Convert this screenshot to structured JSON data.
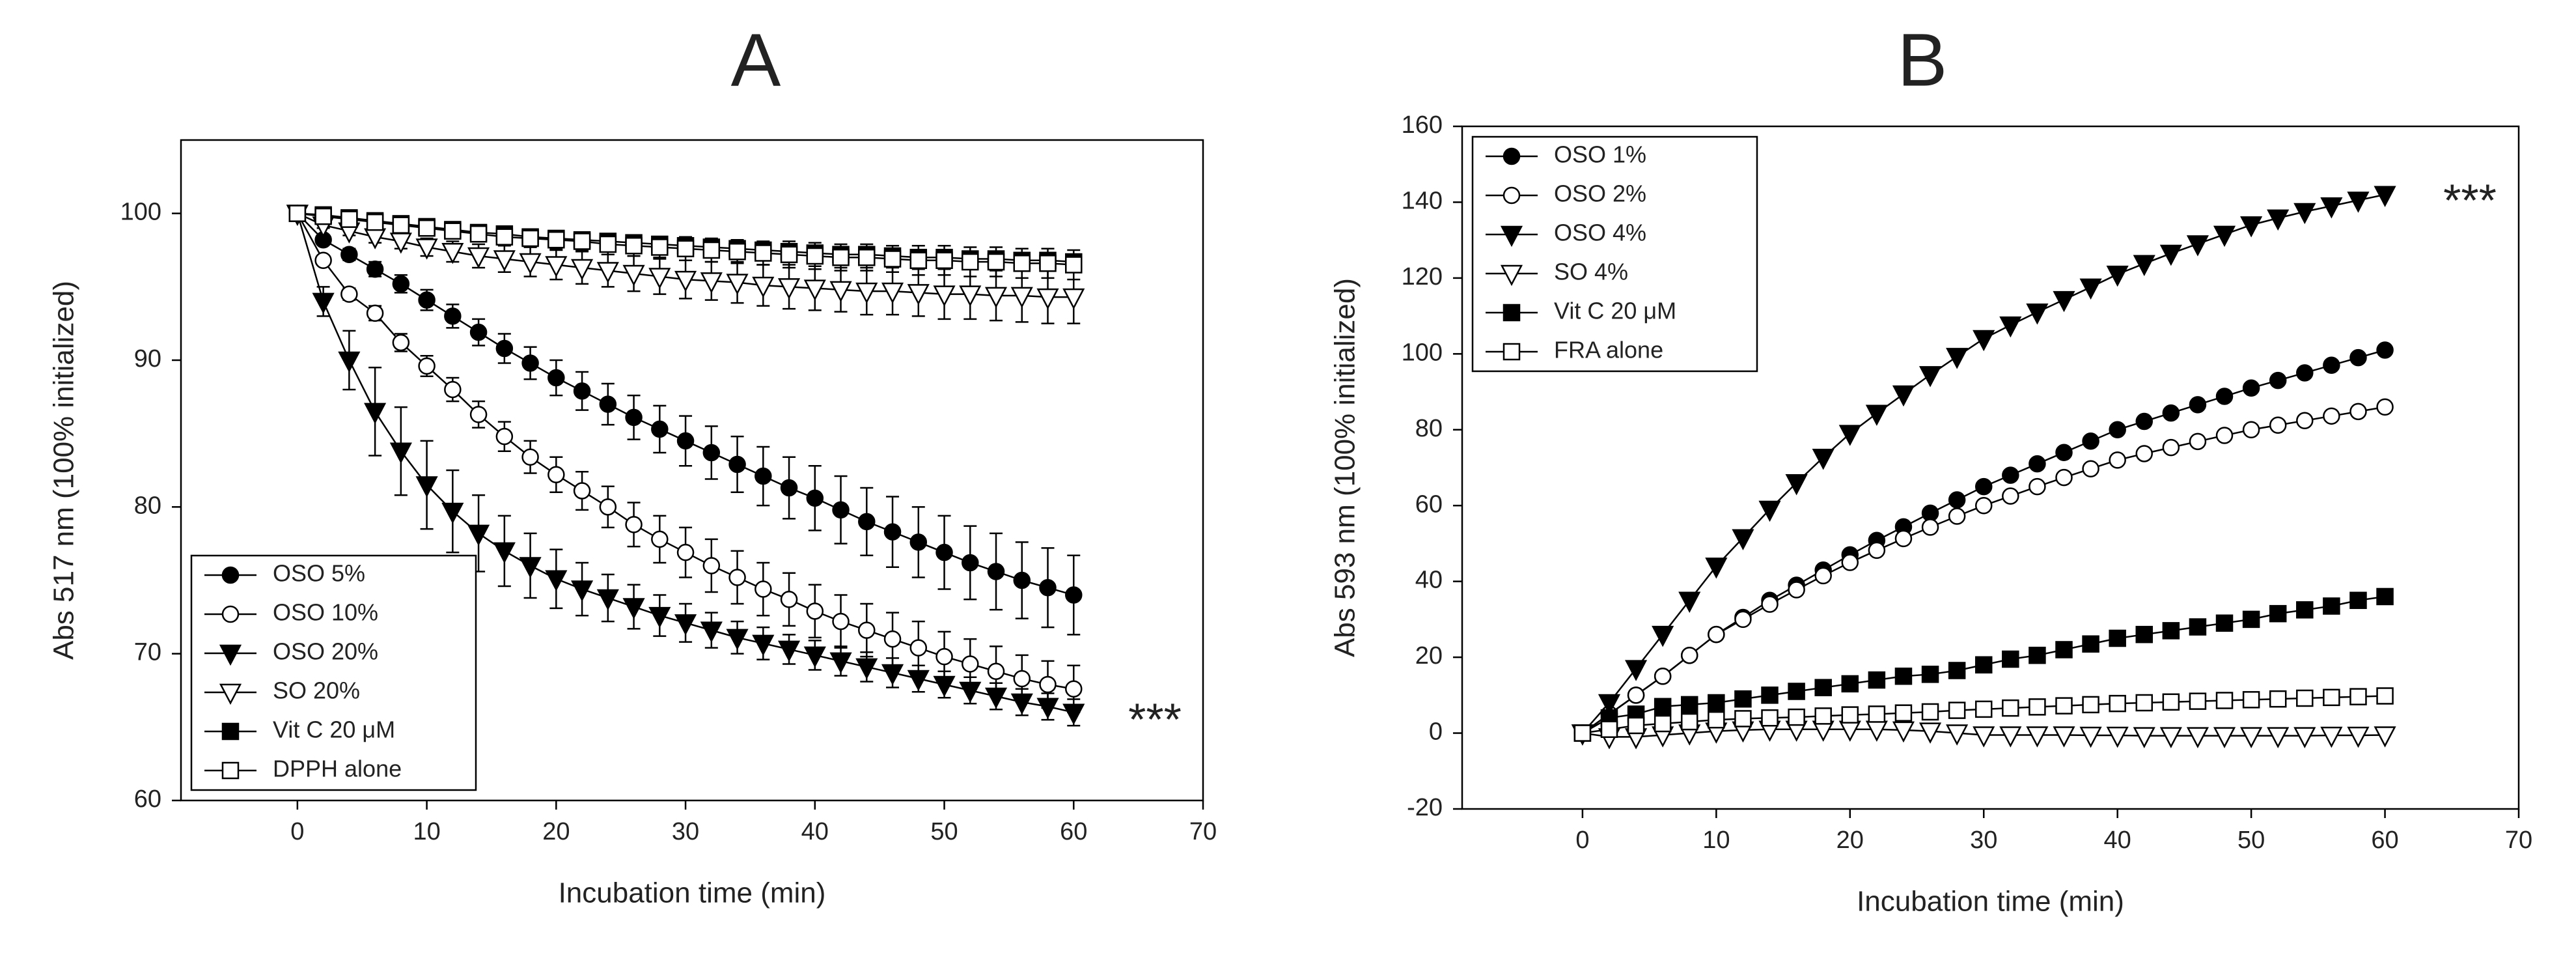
{
  "chart_data": [
    {
      "type": "line",
      "title": "A",
      "xlabel": "Incubation time (min)",
      "ylabel": "Abs 517 nm (100% initialized)",
      "annotation": "***",
      "xlim": [
        -9,
        70
      ],
      "xticks": [
        0,
        10,
        20,
        30,
        40,
        50,
        60,
        70
      ],
      "ylim": [
        60,
        105
      ],
      "yticks": [
        60,
        70,
        80,
        90,
        100
      ],
      "legend": "lower left",
      "x": [
        0,
        2,
        4,
        6,
        8,
        10,
        12,
        14,
        16,
        18,
        20,
        22,
        24,
        26,
        28,
        30,
        32,
        34,
        36,
        38,
        40,
        42,
        44,
        46,
        48,
        50,
        52,
        54,
        56,
        58,
        60
      ],
      "series": [
        {
          "name": "OSO 5%",
          "color": "#000000",
          "marker": "circle",
          "filled": true,
          "values": [
            100,
            98.2,
            97.2,
            96.2,
            95.2,
            94.1,
            93,
            91.9,
            90.8,
            89.8,
            88.8,
            87.9,
            87,
            86.1,
            85.3,
            84.5,
            83.7,
            82.9,
            82.1,
            81.3,
            80.6,
            79.8,
            79,
            78.3,
            77.6,
            76.9,
            76.2,
            75.6,
            75,
            74.5,
            74
          ],
          "errors": [
            0,
            0.3,
            0.4,
            0.5,
            0.6,
            0.7,
            0.8,
            0.9,
            1,
            1.1,
            1.2,
            1.3,
            1.4,
            1.5,
            1.6,
            1.7,
            1.8,
            1.9,
            2,
            2.1,
            2.2,
            2.3,
            2.3,
            2.4,
            2.4,
            2.5,
            2.5,
            2.6,
            2.6,
            2.7,
            2.7
          ]
        },
        {
          "name": "OSO 10%",
          "color": "#000000",
          "marker": "circle",
          "filled": false,
          "values": [
            100,
            96.8,
            94.5,
            93.2,
            91.2,
            89.6,
            88,
            86.3,
            84.8,
            83.4,
            82.2,
            81.1,
            80,
            78.8,
            77.8,
            76.9,
            76,
            75.2,
            74.4,
            73.7,
            72.9,
            72.2,
            71.6,
            71,
            70.4,
            69.8,
            69.3,
            68.8,
            68.3,
            67.9,
            67.6
          ],
          "errors": [
            0,
            0.3,
            0.4,
            0.5,
            0.6,
            0.7,
            0.8,
            0.9,
            1,
            1.1,
            1.2,
            1.3,
            1.4,
            1.5,
            1.6,
            1.7,
            1.8,
            1.8,
            1.8,
            1.8,
            1.8,
            1.8,
            1.8,
            1.8,
            1.8,
            1.7,
            1.7,
            1.7,
            1.6,
            1.6,
            1.6
          ]
        },
        {
          "name": "OSO 20%",
          "color": "#000000",
          "marker": "triangle",
          "filled": true,
          "values": [
            100,
            94,
            90,
            86.5,
            83.8,
            81.5,
            79.7,
            78.2,
            77,
            76,
            75.1,
            74.4,
            73.8,
            73.2,
            72.6,
            72.1,
            71.6,
            71.1,
            70.7,
            70.3,
            69.9,
            69.5,
            69.1,
            68.7,
            68.3,
            67.9,
            67.5,
            67.1,
            66.7,
            66.4,
            66
          ],
          "errors": [
            0,
            1,
            2,
            3,
            3,
            3,
            2.8,
            2.6,
            2.4,
            2.2,
            2,
            1.8,
            1.6,
            1.5,
            1.4,
            1.3,
            1.2,
            1.1,
            1.1,
            1,
            1,
            1,
            1,
            1,
            0.9,
            0.9,
            0.9,
            0.9,
            0.9,
            0.9,
            0.9
          ]
        },
        {
          "name": "SO 20%",
          "color": "#000000",
          "marker": "triangle",
          "filled": false,
          "values": [
            100,
            99.2,
            98.8,
            98.4,
            98.1,
            97.7,
            97.4,
            97.1,
            96.9,
            96.7,
            96.5,
            96.3,
            96.1,
            95.9,
            95.7,
            95.5,
            95.4,
            95.3,
            95.1,
            95,
            94.9,
            94.8,
            94.7,
            94.7,
            94.6,
            94.5,
            94.5,
            94.4,
            94.4,
            94.3,
            94.3
          ],
          "errors": [
            0,
            0.2,
            0.3,
            0.4,
            0.5,
            0.6,
            0.7,
            0.8,
            0.9,
            1,
            1,
            1.1,
            1.1,
            1.2,
            1.2,
            1.3,
            1.3,
            1.4,
            1.4,
            1.5,
            1.5,
            1.5,
            1.6,
            1.6,
            1.6,
            1.7,
            1.7,
            1.7,
            1.8,
            1.8,
            1.8
          ]
        },
        {
          "name": "Vit C 20 μM",
          "color": "#000000",
          "marker": "square",
          "filled": true,
          "values": [
            100,
            99.9,
            99.7,
            99.5,
            99.3,
            99.1,
            98.9,
            98.7,
            98.6,
            98.4,
            98.3,
            98.2,
            98.1,
            98,
            97.9,
            97.8,
            97.7,
            97.6,
            97.5,
            97.4,
            97.3,
            97.2,
            97.2,
            97.1,
            97,
            97,
            96.9,
            96.9,
            96.8,
            96.8,
            96.7
          ]
        },
        {
          "name": "DPPH alone",
          "color": "#000000",
          "marker": "square",
          "filled": false,
          "values": [
            100,
            99.8,
            99.6,
            99.4,
            99.2,
            99,
            98.8,
            98.6,
            98.4,
            98.3,
            98.2,
            98.1,
            97.9,
            97.8,
            97.7,
            97.6,
            97.5,
            97.4,
            97.3,
            97.2,
            97.1,
            97,
            97,
            96.9,
            96.8,
            96.8,
            96.7,
            96.7,
            96.6,
            96.6,
            96.5
          ],
          "errors": [
            0,
            0.2,
            0.2,
            0.3,
            0.3,
            0.4,
            0.4,
            0.5,
            0.5,
            0.6,
            0.6,
            0.6,
            0.7,
            0.7,
            0.7,
            0.8,
            0.8,
            0.8,
            0.8,
            0.9,
            0.9,
            0.9,
            0.9,
            0.9,
            1,
            1,
            1,
            1,
            1,
            1,
            1
          ]
        }
      ]
    },
    {
      "type": "line",
      "title": "B",
      "xlabel": "Incubation time (min)",
      "ylabel": "Abs 593 nm (100% initialized)",
      "annotation": "***",
      "xlim": [
        -9,
        70
      ],
      "xticks": [
        0,
        10,
        20,
        30,
        40,
        50,
        60,
        70
      ],
      "ylim": [
        -20,
        160
      ],
      "yticks": [
        -20,
        0,
        20,
        40,
        60,
        80,
        100,
        120,
        140,
        160
      ],
      "legend": "upper left",
      "x": [
        0,
        2,
        4,
        6,
        8,
        10,
        12,
        14,
        16,
        18,
        20,
        22,
        24,
        26,
        28,
        30,
        32,
        34,
        36,
        38,
        40,
        42,
        44,
        46,
        48,
        50,
        52,
        54,
        56,
        58,
        60
      ],
      "series": [
        {
          "name": "OSO 1%",
          "color": "#000000",
          "marker": "circle",
          "filled": true,
          "values": [
            0,
            5,
            10,
            15,
            20.5,
            26,
            30.5,
            35,
            39,
            43,
            47,
            50.8,
            54.4,
            58,
            61.5,
            65,
            68,
            71,
            74,
            77,
            80,
            82.2,
            84.4,
            86.6,
            88.8,
            91,
            93,
            95,
            97,
            99,
            101
          ]
        },
        {
          "name": "OSO 2%",
          "color": "#000000",
          "marker": "circle",
          "filled": false,
          "values": [
            0,
            5,
            10,
            15,
            20.5,
            26,
            30,
            34,
            37.8,
            41.5,
            45,
            48.2,
            51.3,
            54.3,
            57.2,
            60,
            62.5,
            65,
            67.4,
            69.7,
            72,
            73.7,
            75.3,
            76.9,
            78.5,
            80,
            81.2,
            82.4,
            83.6,
            84.8,
            86
          ]
        },
        {
          "name": "OSO 4%",
          "color": "#000000",
          "marker": "triangle",
          "filled": true,
          "values": [
            0,
            8,
            17,
            26,
            35,
            44,
            51.5,
            59,
            66,
            72.7,
            79,
            84.3,
            89.4,
            94.5,
            99.3,
            104,
            107.6,
            111,
            114.3,
            117.6,
            121,
            123.8,
            126.5,
            129,
            131.5,
            134,
            135.8,
            137.5,
            139,
            140.5,
            142
          ]
        },
        {
          "name": "SO 4%",
          "color": "#000000",
          "marker": "triangle",
          "filled": false,
          "values": [
            0,
            -1,
            -1,
            -0.5,
            0,
            0.5,
            0.8,
            1,
            1,
            1,
            1,
            1,
            0.8,
            0.5,
            0,
            -0.5,
            -0.5,
            -0.5,
            -0.5,
            -0.6,
            -0.6,
            -0.7,
            -0.7,
            -0.7,
            -0.7,
            -0.7,
            -0.7,
            -0.7,
            -0.6,
            -0.6,
            -0.5
          ]
        },
        {
          "name": "Vit C 20 μM",
          "color": "#000000",
          "marker": "square",
          "filled": true,
          "values": [
            0,
            4,
            5,
            7,
            7.5,
            8,
            9,
            10,
            11,
            12,
            13,
            14,
            15,
            15.5,
            16.5,
            18,
            19.5,
            20.5,
            22,
            23.5,
            25,
            26,
            27,
            28,
            29,
            30,
            31.5,
            32.5,
            33.5,
            35,
            36
          ]
        },
        {
          "name": "FRA alone",
          "color": "#000000",
          "marker": "square",
          "filled": false,
          "values": [
            0,
            1,
            2,
            2.5,
            3,
            3.5,
            3.8,
            4,
            4.2,
            4.5,
            4.8,
            5,
            5.3,
            5.6,
            6,
            6.3,
            6.6,
            6.9,
            7.2,
            7.5,
            7.8,
            8,
            8.2,
            8.4,
            8.6,
            8.8,
            9,
            9.2,
            9.4,
            9.6,
            9.8
          ]
        }
      ]
    }
  ]
}
